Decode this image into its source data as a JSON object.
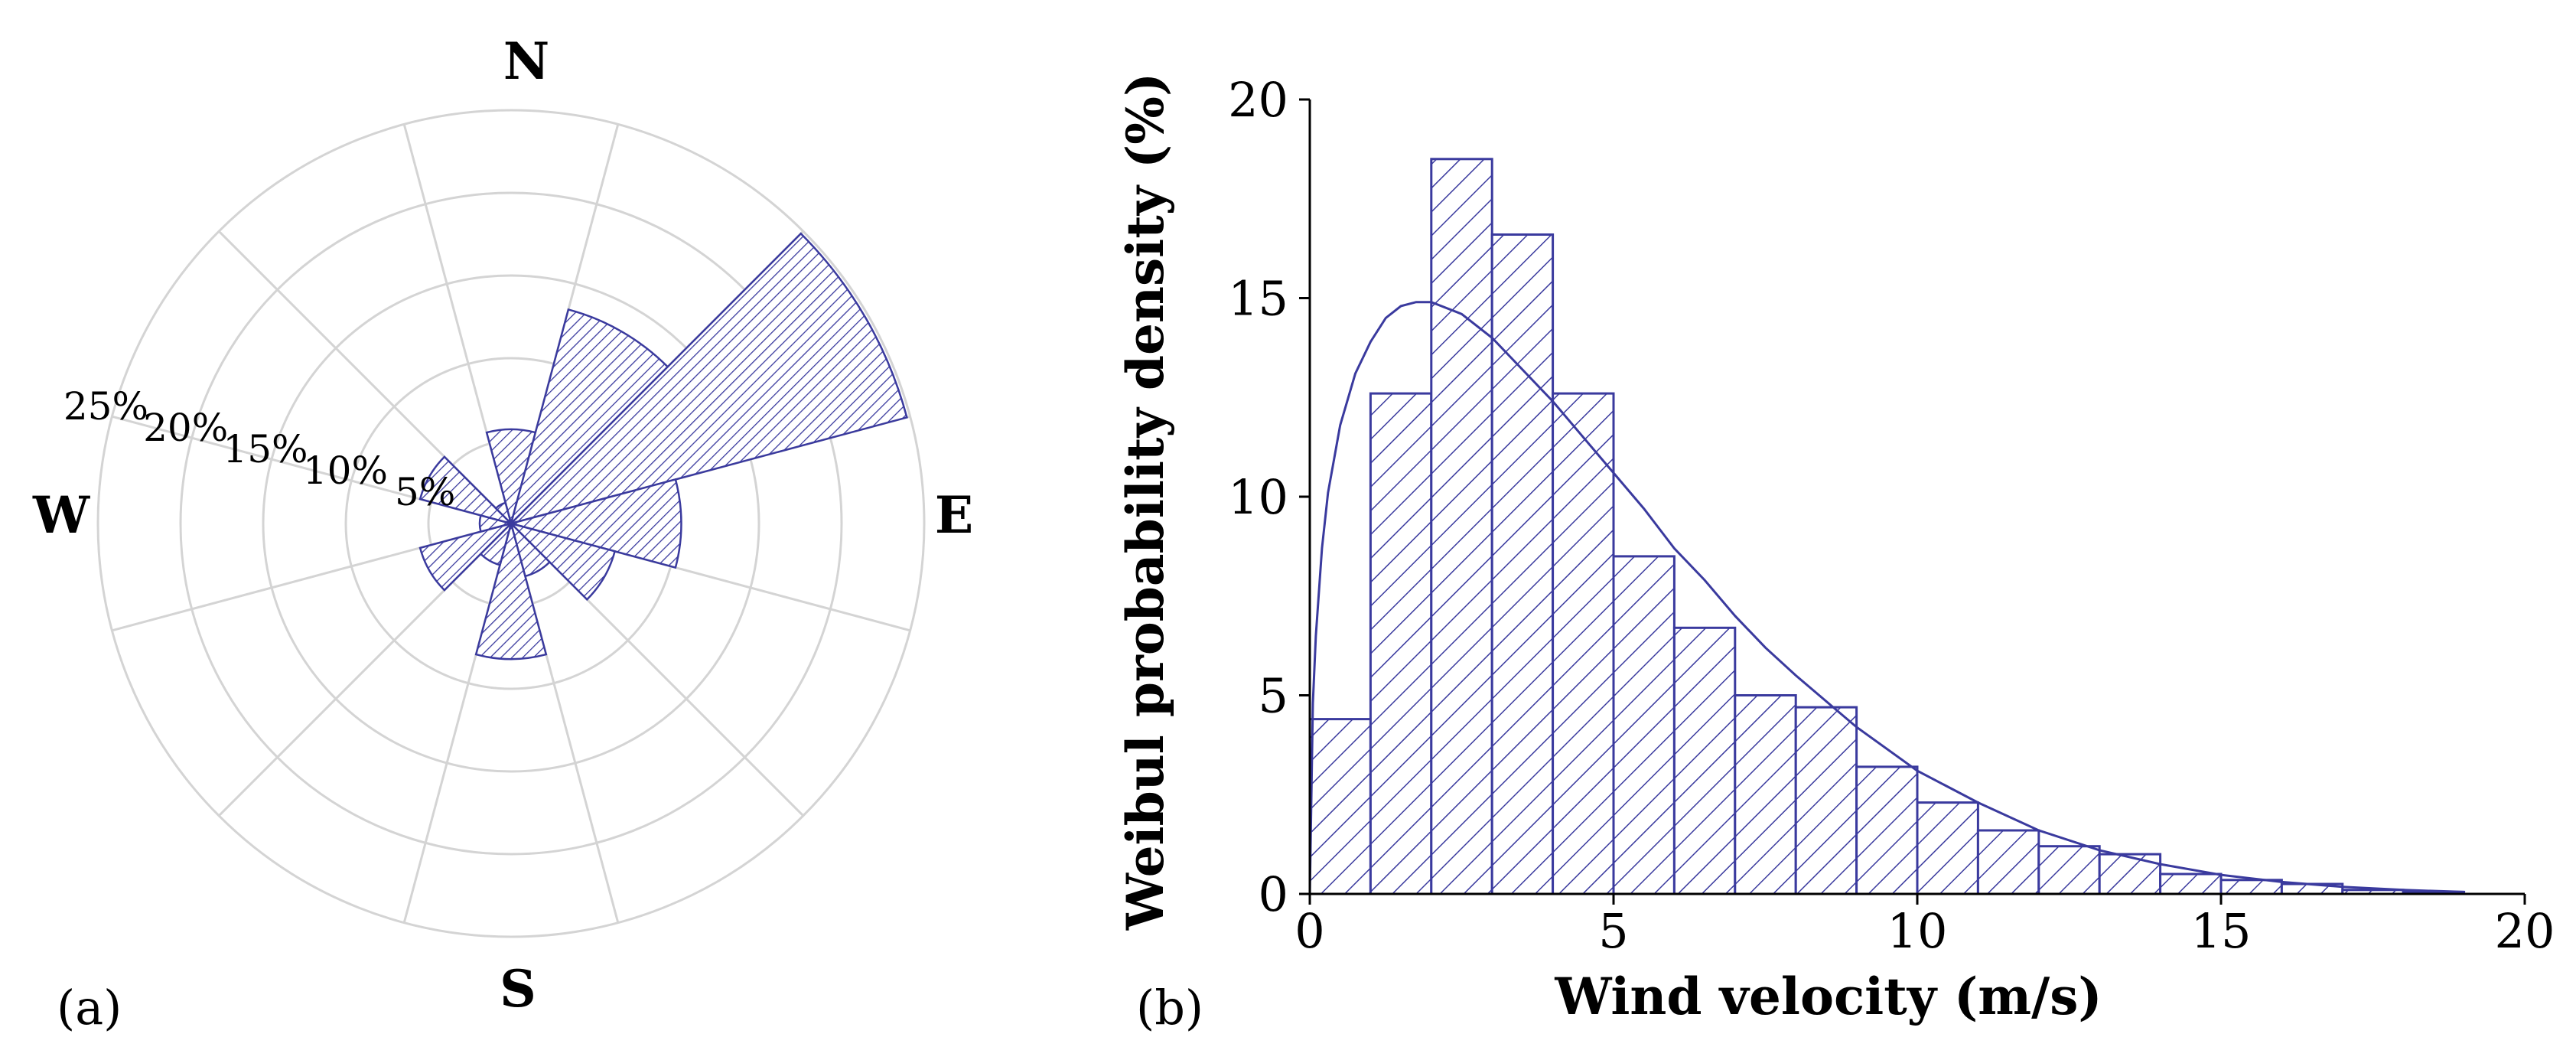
{
  "colors": {
    "series": "#3a3a9e",
    "grid": "#d4d4d4",
    "text": "#000000"
  },
  "chart_data": [
    {
      "type": "rose",
      "panel_label": "(a)",
      "directions": [
        "N",
        "E",
        "S",
        "W"
      ],
      "ring_labels": [
        "5%",
        "10%",
        "15%",
        "20%",
        "25%"
      ],
      "rings": [
        5,
        10,
        15,
        20,
        25
      ],
      "sector_width_deg": 30,
      "sectors": [
        {
          "center_deg": 0,
          "value": 5.7
        },
        {
          "center_deg": 30,
          "value": 13.4
        },
        {
          "center_deg": 60,
          "value": 24.8
        },
        {
          "center_deg": 90,
          "value": 10.3
        },
        {
          "center_deg": 120,
          "value": 6.5
        },
        {
          "center_deg": 150,
          "value": 3.3
        },
        {
          "center_deg": 180,
          "value": 8.2
        },
        {
          "center_deg": 210,
          "value": 2.6
        },
        {
          "center_deg": 240,
          "value": 5.7
        },
        {
          "center_deg": 270,
          "value": 1.9
        },
        {
          "center_deg": 300,
          "value": 5.7
        },
        {
          "center_deg": 330,
          "value": 1.3
        }
      ],
      "grid": true
    },
    {
      "type": "bar",
      "panel_label": "(b)",
      "xlabel": "Wind velocity (m/s)",
      "ylabel": "Weibul probability density (%)",
      "xlim": [
        0,
        20
      ],
      "ylim": [
        0,
        20
      ],
      "xticks": [
        0,
        5,
        10,
        15,
        20
      ],
      "yticks": [
        0,
        5,
        10,
        15,
        20
      ],
      "bin_width": 1,
      "bin_starts": [
        0,
        1,
        2,
        3,
        4,
        5,
        6,
        7,
        8,
        9,
        10,
        11,
        12,
        13,
        14,
        15,
        16,
        17,
        18
      ],
      "values": [
        4.4,
        12.6,
        18.5,
        16.6,
        12.6,
        8.5,
        6.7,
        5.0,
        4.7,
        3.2,
        2.3,
        1.6,
        1.2,
        1.0,
        0.5,
        0.35,
        0.25,
        0.1,
        0.05
      ],
      "curve": {
        "x": [
          0.05,
          0.1,
          0.2,
          0.3,
          0.5,
          0.75,
          1.0,
          1.25,
          1.5,
          1.75,
          2.0,
          2.5,
          3.0,
          3.5,
          4.0,
          4.5,
          5.0,
          5.5,
          6.0,
          6.5,
          7.0,
          7.5,
          8.0,
          9.0,
          10.0,
          11.0,
          12.0,
          13.0,
          14.0,
          15.0,
          16.0,
          17.0,
          18.0,
          19.0
        ],
        "y": [
          4.8,
          6.5,
          8.7,
          10.1,
          11.8,
          13.1,
          13.9,
          14.5,
          14.8,
          14.9,
          14.9,
          14.6,
          14.0,
          13.2,
          12.4,
          11.5,
          10.6,
          9.7,
          8.7,
          7.9,
          7.0,
          6.2,
          5.5,
          4.2,
          3.1,
          2.3,
          1.6,
          1.1,
          0.75,
          0.48,
          0.3,
          0.18,
          0.1,
          0.05
        ]
      },
      "grid": false
    }
  ]
}
